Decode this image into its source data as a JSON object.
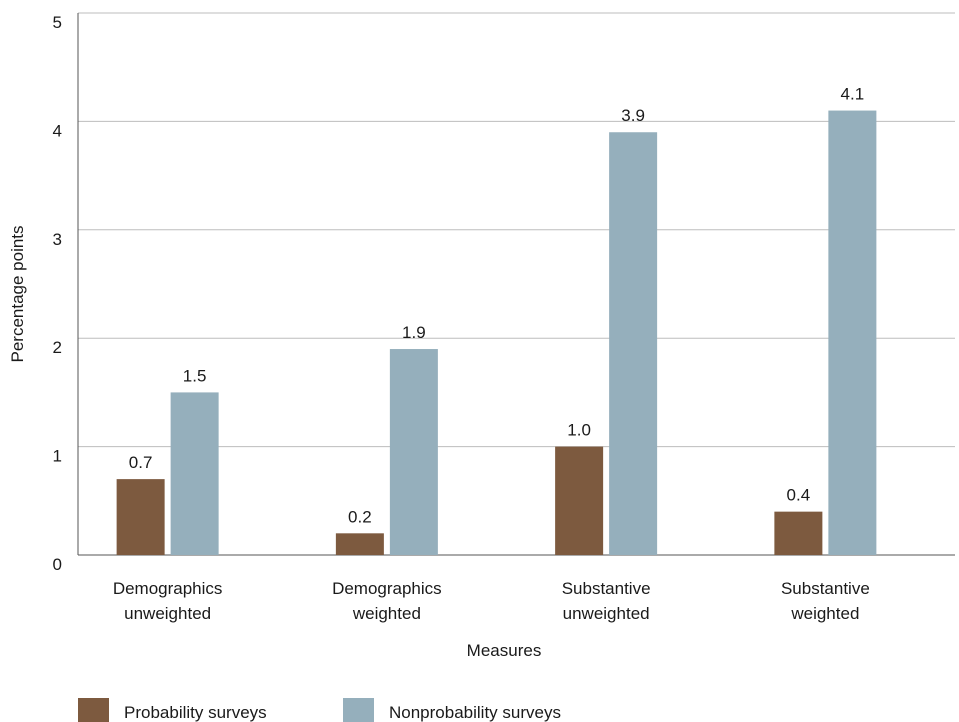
{
  "chart_data": {
    "type": "bar",
    "categories": [
      [
        "Demographics",
        "unweighted"
      ],
      [
        "Demographics",
        "weighted"
      ],
      [
        "Substantive",
        "unweighted"
      ],
      [
        "Substantive",
        "weighted"
      ]
    ],
    "series": [
      {
        "name": "Probability surveys",
        "color": "#7d5a3f",
        "values": [
          0.7,
          0.2,
          1.0,
          0.4
        ],
        "labels": [
          "0.7",
          "0.2",
          "1.0",
          "0.4"
        ]
      },
      {
        "name": "Nonprobability surveys",
        "color": "#95afbc",
        "values": [
          1.5,
          1.9,
          3.9,
          4.1
        ],
        "labels": [
          "1.5",
          "1.9",
          "3.9",
          "4.1"
        ]
      }
    ],
    "ylim": [
      0,
      5
    ],
    "yticks": [
      "0",
      "1",
      "2",
      "3",
      "4",
      "5"
    ],
    "xlabel": "Measures",
    "ylabel": "Percentage points",
    "grid": true,
    "legend_position": "bottom-left"
  }
}
